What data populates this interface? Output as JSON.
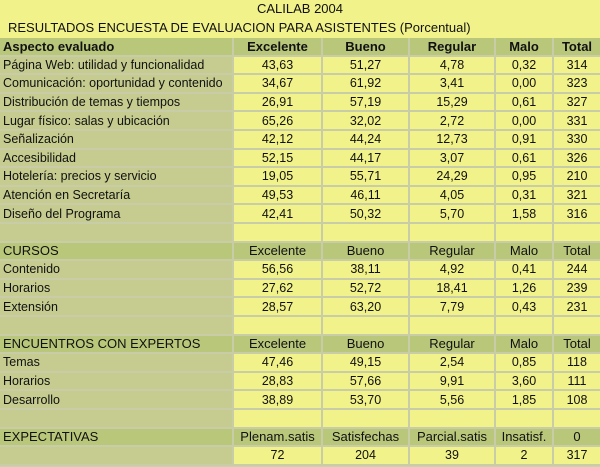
{
  "title": "CALILAB 2004",
  "subtitle": "RESULTADOS ENCUESTA DE EVALUACION PARA ASISTENTES (Porcentual)",
  "section1": {
    "headers": [
      "Aspecto evaluado",
      "Excelente",
      "Bueno",
      "Regular",
      "Malo",
      "Total"
    ],
    "rows": [
      [
        "Página Web: utilidad y funcionalidad",
        "43,63",
        "51,27",
        "4,78",
        "0,32",
        "314"
      ],
      [
        "Comunicación: oportunidad y contenido",
        "34,67",
        "61,92",
        "3,41",
        "0,00",
        "323"
      ],
      [
        "Distribución de temas y tiempos",
        "26,91",
        "57,19",
        "15,29",
        "0,61",
        "327"
      ],
      [
        "Lugar físico: salas y ubicación",
        "65,26",
        "32,02",
        "2,72",
        "0,00",
        "331"
      ],
      [
        "Señalización",
        "42,12",
        "44,24",
        "12,73",
        "0,91",
        "330"
      ],
      [
        "Accesibilidad",
        "52,15",
        "44,17",
        "3,07",
        "0,61",
        "326"
      ],
      [
        "Hotelería: precios y servicio",
        "19,05",
        "55,71",
        "24,29",
        "0,95",
        "210"
      ],
      [
        "Atención en Secretaría",
        "49,53",
        "46,11",
        "4,05",
        "0,31",
        "321"
      ],
      [
        "Diseño del Programa",
        "42,41",
        "50,32",
        "5,70",
        "1,58",
        "316"
      ]
    ]
  },
  "section2": {
    "headers": [
      "CURSOS",
      "Excelente",
      "Bueno",
      "Regular",
      "Malo",
      "Total"
    ],
    "rows": [
      [
        "Contenido",
        "56,56",
        "38,11",
        "4,92",
        "0,41",
        "244"
      ],
      [
        "Horarios",
        "27,62",
        "52,72",
        "18,41",
        "1,26",
        "239"
      ],
      [
        "Extensión",
        "28,57",
        "63,20",
        "7,79",
        "0,43",
        "231"
      ]
    ]
  },
  "section3": {
    "headers": [
      "ENCUENTROS CON EXPERTOS",
      "Excelente",
      "Bueno",
      "Regular",
      "Malo",
      "Total"
    ],
    "rows": [
      [
        "Temas",
        "47,46",
        "49,15",
        "2,54",
        "0,85",
        "118"
      ],
      [
        "Horarios",
        "28,83",
        "57,66",
        "9,91",
        "3,60",
        "111"
      ],
      [
        "Desarrollo",
        "38,89",
        "53,70",
        "5,56",
        "1,85",
        "108"
      ]
    ]
  },
  "section4": {
    "headers": [
      "EXPECTATIVAS",
      "Plenam.satis",
      "Satisfechas",
      "Parcial.satis",
      "Insatisf.",
      "0"
    ],
    "rows": [
      [
        "",
        "72",
        "204",
        "39",
        "2",
        "317"
      ]
    ]
  },
  "colors": {
    "header_green": "#b9c77a",
    "cell_yellow": "#f2f28a",
    "label_olive": "#c6cc8f",
    "background": "#c8cda8"
  }
}
